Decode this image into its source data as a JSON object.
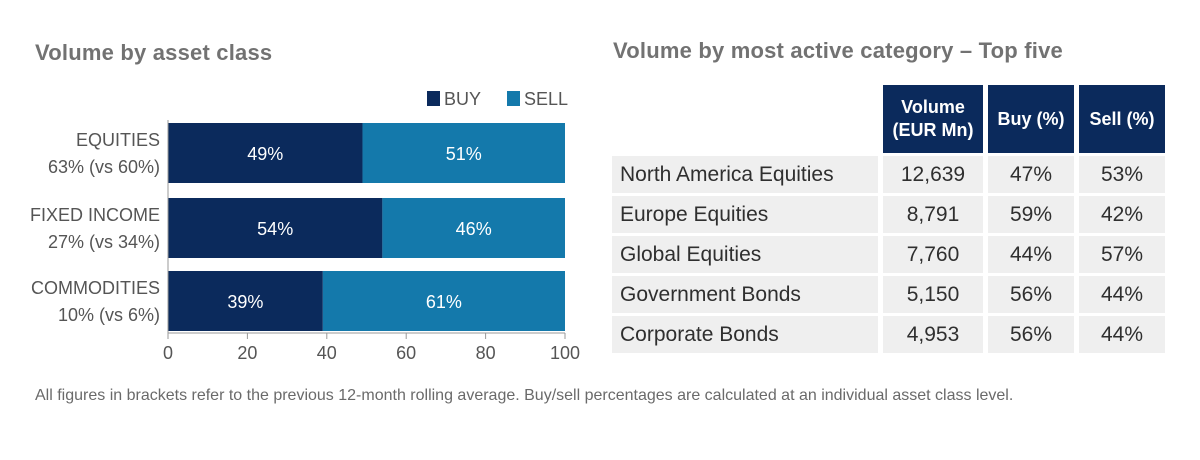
{
  "left": {
    "title": "Volume by asset class"
  },
  "right": {
    "title": "Volume by most active category – Top five",
    "columns": [
      "",
      "Volume\n(EUR Mn)",
      "Buy (%)",
      "Sell (%)"
    ],
    "rows": [
      {
        "name": "North America Equities",
        "volume": "12,639",
        "buy": "47%",
        "sell": "53%"
      },
      {
        "name": "Europe Equities",
        "volume": "8,791",
        "buy": "59%",
        "sell": "42%"
      },
      {
        "name": "Global Equities",
        "volume": "7,760",
        "buy": "44%",
        "sell": "57%"
      },
      {
        "name": "Government Bonds",
        "volume": "5,150",
        "buy": "56%",
        "sell": "44%"
      },
      {
        "name": "Corporate Bonds",
        "volume": "4,953",
        "buy": "56%",
        "sell": "44%"
      }
    ]
  },
  "footnote": "All figures in brackets refer to the previous 12-month rolling average. Buy/sell percentages are calculated at an individual asset class level.",
  "colors": {
    "buy": "#0b2a5c",
    "sell": "#1479ab"
  },
  "chart_data": {
    "type": "bar",
    "orientation": "horizontal",
    "stacked": true,
    "title": "Volume by asset class",
    "categories": [
      "EQUITIES",
      "FIXED INCOME",
      "COMMODITIES"
    ],
    "category_sublabels": [
      "63% (vs 60%)",
      "27% (vs 34%)",
      "10% (vs 6%)"
    ],
    "series": [
      {
        "name": "BUY",
        "values": [
          49,
          54,
          39
        ],
        "labels": [
          "49%",
          "54%",
          "39%"
        ]
      },
      {
        "name": "SELL",
        "values": [
          51,
          46,
          61
        ],
        "labels": [
          "51%",
          "46%",
          "61%"
        ]
      }
    ],
    "xlim": [
      0,
      100
    ],
    "xticks": [
      0,
      20,
      40,
      60,
      80,
      100
    ],
    "grid": false,
    "legend": "top-right"
  }
}
